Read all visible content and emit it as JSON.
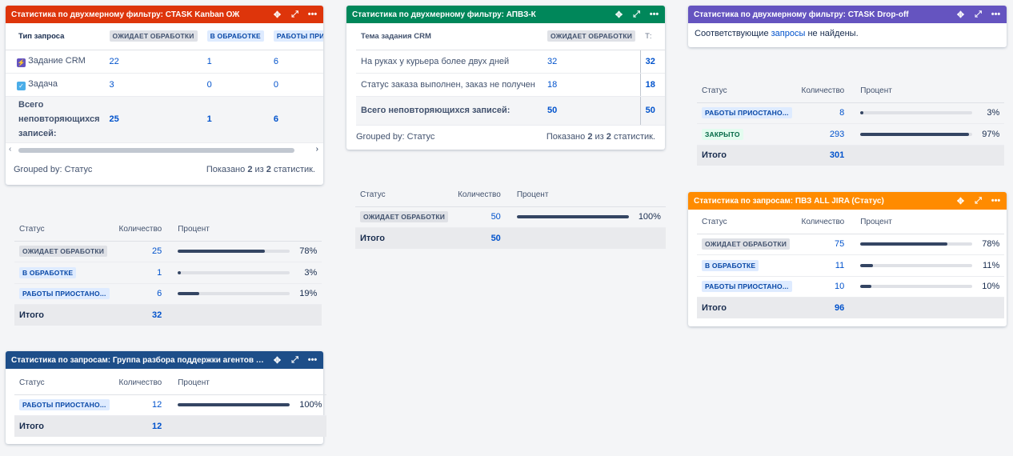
{
  "controls": {
    "move": "✥",
    "expand": "⤢",
    "more": "•••"
  },
  "g1": {
    "title": "Статистика по двухмерному фильтру: CTASK Kanban ОЖ",
    "color": "#de350b",
    "col_header": "Тип запроса",
    "columns": [
      "ОЖИДАЕТ ОБРАБОТКИ",
      "В ОБРАБОТКЕ",
      "РАБОТЫ ПРИОСТАН"
    ],
    "rows": [
      {
        "icon": "task-crm-icon",
        "label": "Задание CRM",
        "values": [
          "22",
          "1",
          "6"
        ]
      },
      {
        "icon": "task-icon",
        "label": "Задача",
        "values": [
          "3",
          "0",
          "0"
        ]
      }
    ],
    "total_label": "Всего неповторяющихся записей:",
    "total_values": [
      "25",
      "1",
      "6"
    ],
    "grouped_by": "Grouped by: Статус",
    "shown_prefix": "Показано",
    "shown_a": "2",
    "shown_mid": "из",
    "shown_b": "2",
    "shown_suffix": "статистик."
  },
  "s1": {
    "headers": [
      "Статус",
      "Количество",
      "Процент"
    ],
    "rows": [
      {
        "status": "ОЖИДАЕТ ОБРАБОТКИ",
        "style": "grey",
        "count": "25",
        "percent": "78%",
        "fill": 78
      },
      {
        "status": "В ОБРАБОТКЕ",
        "style": "blue",
        "count": "1",
        "percent": "3%",
        "fill": 3
      },
      {
        "status": "РАБОТЫ ПРИОСТАНО...",
        "style": "blue",
        "count": "6",
        "percent": "19%",
        "fill": 19
      }
    ],
    "total_label": "Итого",
    "total": "32"
  },
  "g2": {
    "title": "Статистика по запросам: Группа разбора поддержки агентов (Статус)",
    "color": "#1d4e89",
    "headers": [
      "Статус",
      "Количество",
      "Процент"
    ],
    "rows": [
      {
        "status": "РАБОТЫ ПРИОСТАНО...",
        "style": "blue",
        "count": "12",
        "percent": "100%",
        "fill": 100
      }
    ],
    "total_label": "Итого",
    "total": "12"
  },
  "g3": {
    "title": "Статистика по двухмерному фильтру: АПВЗ-К",
    "color": "#00875a",
    "col_header": "Тема задания CRM",
    "columns": [
      "ОЖИДАЕТ ОБРАБОТКИ",
      "Т:"
    ],
    "rows": [
      {
        "label": "На руках у курьера более двух дней",
        "values": [
          "32",
          "32"
        ]
      },
      {
        "label": "Статус заказа выполнен, заказ не получен",
        "values": [
          "18",
          "18"
        ]
      }
    ],
    "total_label": "Всего неповторяющихся записей:",
    "total_values": [
      "50",
      "50"
    ],
    "grouped_by": "Grouped by: Статус",
    "shown_prefix": "Показано",
    "shown_a": "2",
    "shown_mid": "из",
    "shown_b": "2",
    "shown_suffix": "статистик."
  },
  "s3": {
    "headers": [
      "Статус",
      "Количество",
      "Процент"
    ],
    "rows": [
      {
        "status": "ОЖИДАЕТ ОБРАБОТКИ",
        "style": "grey",
        "count": "50",
        "percent": "100%",
        "fill": 100
      }
    ],
    "total_label": "Итого",
    "total": "50"
  },
  "g4": {
    "title": "Статистика по двухмерному фильтру: CTASK Drop-off",
    "color": "#6554c0",
    "msg_before": "Соответствующие",
    "msg_link": "запросы",
    "msg_after": "не найдены."
  },
  "s4": {
    "headers": [
      "Статус",
      "Количество",
      "Процент"
    ],
    "rows": [
      {
        "status": "РАБОТЫ ПРИОСТАНО...",
        "style": "blue",
        "count": "8",
        "percent": "3%",
        "fill": 3
      },
      {
        "status": "ЗАКРЫТО",
        "style": "green",
        "count": "293",
        "percent": "97%",
        "fill": 97
      }
    ],
    "total_label": "Итого",
    "total": "301"
  },
  "g5": {
    "title": "Статистика по запросам: ПВЗ ALL JIRA (Статус)",
    "color": "#ff8b00",
    "headers": [
      "Статус",
      "Количество",
      "Процент"
    ],
    "rows": [
      {
        "status": "ОЖИДАЕТ ОБРАБОТКИ",
        "style": "grey",
        "count": "75",
        "percent": "78%",
        "fill": 78
      },
      {
        "status": "В ОБРАБОТКЕ",
        "style": "blue",
        "count": "11",
        "percent": "11%",
        "fill": 11
      },
      {
        "status": "РАБОТЫ ПРИОСТАНО...",
        "style": "blue",
        "count": "10",
        "percent": "10%",
        "fill": 10
      }
    ],
    "total_label": "Итого",
    "total": "96"
  }
}
